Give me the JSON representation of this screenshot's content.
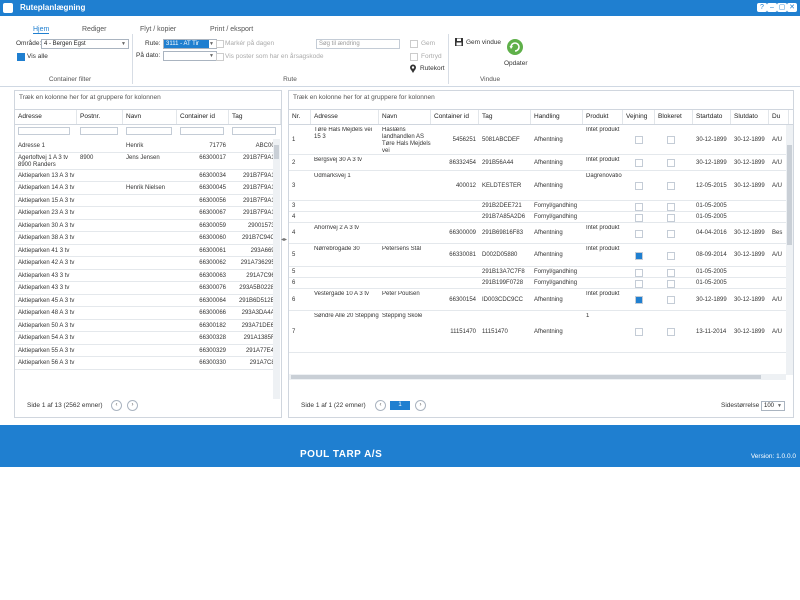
{
  "window": {
    "title": "Ruteplanlægning",
    "buttons": [
      "?",
      "–",
      "▢",
      "✕"
    ]
  },
  "tabs": [
    "Hjem",
    "Rediger",
    "Flyt / kopier",
    "Print / eksport"
  ],
  "ribbon": {
    "customer_filter": {
      "area_label": "Område:",
      "area_value": "4 - Bergen Egst",
      "show_all_label": "Vis alle",
      "group_label": "Container filter"
    },
    "route": {
      "route_label": "Rute:",
      "route_value": "3111 - AT Tir",
      "date_label": "På dato:",
      "date_value": "",
      "markers_label": "Markér på dagen",
      "all_routes_label": "Vis poster som har en årsagskode",
      "search_placeholder": "Søg til ændring",
      "save_label": "Gem",
      "delete_label": "Fortryd",
      "route_map_label": "Rutekort",
      "group_label": "Rute"
    },
    "window_group": {
      "save_window_label": "Gem vindue",
      "refresh_label": "Opdater",
      "group_label": "Vindue"
    }
  },
  "left_grid": {
    "group_hint": "Træk en kolonne her for at gruppere for kolonnen",
    "columns": [
      "Adresse",
      "Postnr.",
      "Navn",
      "Container id",
      "Tag"
    ],
    "rows": [
      [
        "Adresse 1",
        "",
        "Henrik",
        "71776",
        "ABC000"
      ],
      [
        "Agertoftvej 1 A 3 tv\n8900 Randers",
        "8900",
        "Jens Jensen",
        "66300017",
        "291B7F9A14"
      ],
      [
        "Aktieparken 13 A 3 tv",
        "",
        "",
        "66300034",
        "291B7F9A14"
      ],
      [
        "Aktieparken 14 A 3 tv",
        "",
        "Henrik Nielsen",
        "66300045",
        "291B7F9A14"
      ],
      [
        "Aktieparken 15 A 3 tv",
        "",
        "",
        "66300056",
        "291B7F9A14"
      ],
      [
        "Aktieparken 23 A 3 tv",
        "",
        "",
        "66300067",
        "291B7F9A14"
      ],
      [
        "Aktieparken 30 A 3 tv",
        "",
        "",
        "66300059",
        "290015735"
      ],
      [
        "Aktieparken 38 A 3 tv",
        "",
        "",
        "66300060",
        "291B7C94C0"
      ],
      [
        "Aktieparken 41 3 tv",
        "",
        "",
        "66300061",
        "293A6698"
      ],
      [
        "Aktieparken 42 A 3 tv",
        "",
        "",
        "66300062",
        "291A7362955"
      ],
      [
        "Aktieparken 43 3 tv",
        "",
        "",
        "66300063",
        "291A7C963"
      ],
      [
        "Aktieparken 43 3 tv",
        "",
        "",
        "66300076",
        "293A5B0228A"
      ],
      [
        "Aktieparken 45 A 3 tv",
        "",
        "",
        "66300064",
        "291B6D512E8"
      ],
      [
        "Aktieparken 48 A 3 tv",
        "",
        "",
        "66300066",
        "293A3DA4A3"
      ],
      [
        "Aktieparken 50 A 3 tv",
        "",
        "",
        "66300182",
        "293A71DE6A"
      ],
      [
        "Aktieparken 54 A 3 tv",
        "",
        "",
        "66300328",
        "291A1385F5"
      ],
      [
        "Aktieparken 55 A 3 tv",
        "",
        "",
        "66300329",
        "291A77E4S"
      ],
      [
        "Aktieparken 56 A 3 tv",
        "",
        "",
        "66300330",
        "291A7C84"
      ]
    ],
    "pager": "Side 1 af 13 (2562 emner)"
  },
  "right_grid": {
    "group_hint": "Træk en kolonne her for at gruppere for kolonnen",
    "columns": [
      "Nr.",
      "Adresse",
      "Navn",
      "Container id",
      "Tag",
      "Handling",
      "Produkt",
      "Vejning",
      "Blokeret",
      "Startdato",
      "Slutdato",
      "Du"
    ],
    "rows": [
      {
        "nr": "1",
        "adresse": "Tøre Hals Mejdels vei 15 3",
        "navn": "Haslæns landhandlen AS Tøre Hals Mejdels vei",
        "cid": "5456251",
        "tag": "5081ABCDEF",
        "handling": "Afhentning",
        "produkt": "Intet produkt",
        "vejning": false,
        "blokeret": false,
        "start": "30-12-1899",
        "slut": "30-12-1899",
        "du": "A/U"
      },
      {
        "nr": "2",
        "adresse": "Bergsvej 30 A 3 tv",
        "navn": "",
        "cid": "86332454",
        "tag": "291B56A44",
        "handling": "Afhentning",
        "produkt": "Intet produkt",
        "vejning": false,
        "blokeret": false,
        "start": "30-12-1899",
        "slut": "30-12-1899",
        "du": "A/U"
      },
      {
        "nr": "3",
        "adresse": "Udmarksvej 1",
        "navn": "",
        "cid": "400012",
        "tag": "KELDTESTER",
        "handling": "Afhentning",
        "produkt": "Dagrenovatio",
        "vejning": false,
        "blokeret": false,
        "start": "12-05-2015",
        "slut": "30-12-1899",
        "du": "A/U"
      },
      {
        "nr": "3",
        "adresse": "",
        "navn": "",
        "cid": "",
        "tag": "291B2DEE721",
        "handling": "Fornyl/gandhing",
        "produkt": "",
        "vejning": false,
        "blokeret": false,
        "start": "01-05-2005",
        "slut": "",
        "du": ""
      },
      {
        "nr": "4",
        "adresse": "",
        "navn": "",
        "cid": "",
        "tag": "291B7A85A2D6",
        "handling": "Fornyl/gandhing",
        "produkt": "",
        "vejning": false,
        "blokeret": false,
        "start": "01-05-2005",
        "slut": "",
        "du": ""
      },
      {
        "nr": "4",
        "adresse": "Ahornvej 2 A 3 tv",
        "navn": "",
        "cid": "66300009",
        "tag": "291B69816F83",
        "handling": "Afhentning",
        "produkt": "Intet produkt",
        "vejning": false,
        "blokeret": false,
        "start": "04-04-2016",
        "slut": "30-12-1899",
        "du": "Bes"
      },
      {
        "nr": "5",
        "adresse": "Nørrebrogade 30",
        "navn": "Petersens Stål",
        "cid": "66330081",
        "tag": "D002D05880",
        "handling": "Afhentning",
        "produkt": "Intet produkt",
        "vejning": true,
        "blokeret": false,
        "start": "08-09-2014",
        "slut": "30-12-1899",
        "du": "A/U"
      },
      {
        "nr": "5",
        "adresse": "",
        "navn": "",
        "cid": "",
        "tag": "291B13A7C7F8",
        "handling": "Fornyl/gandhing",
        "produkt": "",
        "vejning": false,
        "blokeret": false,
        "start": "01-05-2005",
        "slut": "",
        "du": ""
      },
      {
        "nr": "6",
        "adresse": "",
        "navn": "",
        "cid": "",
        "tag": "291B199F0728",
        "handling": "Fornyl/gandhing",
        "produkt": "",
        "vejning": false,
        "blokeret": false,
        "start": "01-05-2005",
        "slut": "",
        "du": ""
      },
      {
        "nr": "6",
        "adresse": "Vestergade 10 A 3 tv",
        "navn": "Peter Poulsen",
        "cid": "66300154",
        "tag": "ID003CDC9CC",
        "handling": "Afhentning",
        "produkt": "Intet produkt",
        "vejning": true,
        "blokeret": false,
        "start": "30-12-1899",
        "slut": "30-12-1899",
        "du": "A/U"
      },
      {
        "nr": "7",
        "adresse": "Søndre Alle 20 Stepping",
        "navn": "Stepping Skole",
        "cid": "11151470",
        "tag": "11151470",
        "handling": "Afhentning",
        "produkt": "1",
        "vejning": false,
        "blokeret": false,
        "start": "13-11-2014",
        "slut": "30-12-1899",
        "du": "A/U"
      }
    ],
    "pager": "Side 1 af 1 (22 emner)",
    "current_page": "1",
    "page_size_label": "Sidestørrelse",
    "page_size_value": "100"
  },
  "footer": {
    "company": "POUL TARP A/S",
    "version": "Version: 1.0.0.0"
  },
  "colors": {
    "accent": "#1f7fd0",
    "border": "#d0d6de"
  }
}
